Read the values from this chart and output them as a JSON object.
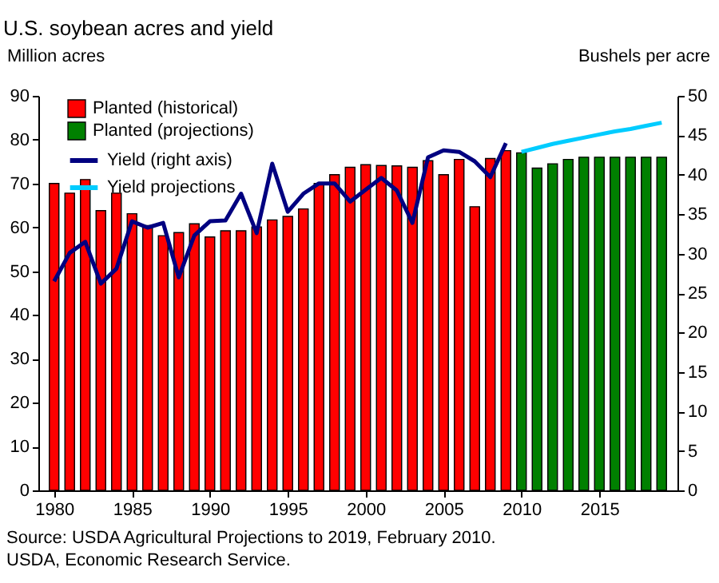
{
  "chart_data": {
    "type": "bar",
    "title": "U.S. soybean acres and yield",
    "ylabel": "Million acres",
    "y2label": "Bushels per acre",
    "xlim": [
      1979.5,
      2019.5
    ],
    "xticks": [
      1980,
      1985,
      1990,
      1995,
      2000,
      2005,
      2010,
      2015
    ],
    "ylim": [
      0,
      90
    ],
    "yticks": [
      0,
      10,
      20,
      30,
      40,
      50,
      60,
      70,
      80,
      90
    ],
    "y2lim": [
      0,
      50
    ],
    "y2ticks": [
      0,
      5,
      10,
      15,
      20,
      25,
      30,
      35,
      40,
      45,
      50
    ],
    "grid": false,
    "legend": "top left",
    "series": [
      {
        "name": "Planted (historical)",
        "color": "#ff0000",
        "x": [
          1980,
          1981,
          1982,
          1983,
          1984,
          1985,
          1986,
          1987,
          1988,
          1989,
          1990,
          1991,
          1992,
          1993,
          1994,
          1995,
          1996,
          1997,
          1998,
          1999,
          2000,
          2001,
          2002,
          2003,
          2004,
          2005,
          2006,
          2007,
          2008,
          2009
        ],
        "values": [
          70.0,
          67.8,
          70.9,
          63.8,
          67.8,
          63.1,
          60.4,
          58.1,
          58.8,
          60.8,
          57.8,
          59.2,
          59.2,
          60.1,
          61.7,
          62.5,
          64.2,
          70.0,
          72.0,
          73.7,
          74.3,
          74.1,
          74.0,
          73.7,
          75.2,
          72.0,
          75.5,
          64.7,
          75.7,
          77.5
        ]
      },
      {
        "name": "Planted (projections)",
        "color": "#008000",
        "x": [
          2010,
          2011,
          2012,
          2013,
          2014,
          2015,
          2016,
          2017,
          2018,
          2019
        ],
        "values": [
          77.0,
          73.5,
          74.5,
          75.5,
          76.0,
          76.0,
          76.0,
          76.0,
          76.0,
          76.0
        ]
      },
      {
        "name": "Yield (right axis)",
        "type": "line",
        "axis": "y2",
        "color": "#000080",
        "x": [
          1980,
          1981,
          1982,
          1983,
          1984,
          1985,
          1986,
          1987,
          1988,
          1989,
          1990,
          1991,
          1992,
          1993,
          1994,
          1995,
          1996,
          1997,
          1998,
          1999,
          2000,
          2001,
          2002,
          2003,
          2004,
          2005,
          2006,
          2007,
          2008,
          2009
        ],
        "values": [
          26.5,
          30.1,
          31.5,
          26.2,
          28.1,
          34.1,
          33.3,
          33.9,
          27.0,
          32.3,
          34.1,
          34.2,
          37.6,
          32.6,
          41.4,
          35.3,
          37.6,
          38.9,
          38.9,
          36.6,
          38.1,
          39.6,
          38.0,
          33.9,
          42.2,
          43.1,
          42.9,
          41.7,
          39.7,
          44.0
        ]
      },
      {
        "name": "Yield projections",
        "type": "line",
        "axis": "y2",
        "color": "#00ccff",
        "x": [
          2010,
          2011,
          2012,
          2013,
          2014,
          2015,
          2016,
          2017,
          2018,
          2019
        ],
        "values": [
          42.9,
          43.4,
          43.9,
          44.3,
          44.7,
          45.1,
          45.5,
          45.8,
          46.2,
          46.6
        ]
      }
    ],
    "annotations": [
      "Source: USDA Agricultural Projections to 2019, February 2010.",
      "USDA, Economic Research Service."
    ]
  }
}
